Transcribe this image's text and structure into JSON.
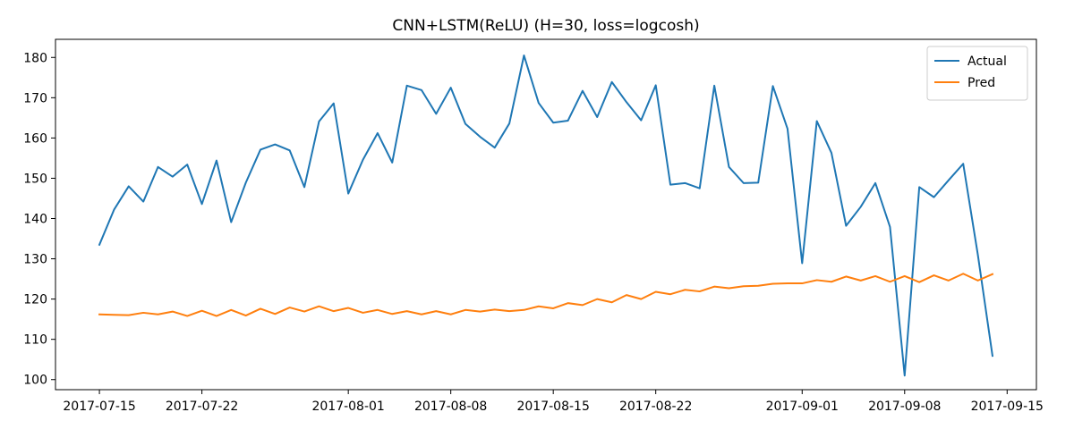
{
  "chart_data": {
    "type": "line",
    "title": "CNN+LSTM(ReLU) (H=30, loss=logcosh)",
    "xlabel": "",
    "ylabel": "",
    "x_start": "2017-07-15",
    "x_dates": [
      "2017-07-15",
      "2017-07-16",
      "2017-07-17",
      "2017-07-18",
      "2017-07-19",
      "2017-07-20",
      "2017-07-21",
      "2017-07-22",
      "2017-07-23",
      "2017-07-24",
      "2017-07-25",
      "2017-07-26",
      "2017-07-27",
      "2017-07-28",
      "2017-07-29",
      "2017-07-30",
      "2017-07-31",
      "2017-08-01",
      "2017-08-02",
      "2017-08-03",
      "2017-08-04",
      "2017-08-05",
      "2017-08-06",
      "2017-08-07",
      "2017-08-08",
      "2017-08-09",
      "2017-08-10",
      "2017-08-11",
      "2017-08-12",
      "2017-08-13",
      "2017-08-14",
      "2017-08-15",
      "2017-08-16",
      "2017-08-17",
      "2017-08-18",
      "2017-08-19",
      "2017-08-20",
      "2017-08-21",
      "2017-08-22",
      "2017-08-23",
      "2017-08-24",
      "2017-08-25",
      "2017-08-26",
      "2017-08-27",
      "2017-08-28",
      "2017-08-29",
      "2017-08-30",
      "2017-08-31",
      "2017-09-01",
      "2017-09-02",
      "2017-09-03",
      "2017-09-04",
      "2017-09-05",
      "2017-09-06",
      "2017-09-07",
      "2017-09-08",
      "2017-09-09",
      "2017-09-10",
      "2017-09-11",
      "2017-09-12",
      "2017-09-13",
      "2017-09-14"
    ],
    "xlim": [
      "2017-07-12",
      "2017-09-17"
    ],
    "ylim": [
      97.5,
      184.5
    ],
    "x_ticks": [
      "2017-07-15",
      "2017-07-22",
      "2017-08-01",
      "2017-08-08",
      "2017-08-15",
      "2017-08-22",
      "2017-09-01",
      "2017-09-08",
      "2017-09-15"
    ],
    "y_ticks": [
      100,
      110,
      120,
      130,
      140,
      150,
      160,
      170,
      180
    ],
    "grid": false,
    "legend_position": "top-right",
    "series": [
      {
        "name": "Actual",
        "color": "#1f77b4",
        "values": [
          133.5,
          142.2,
          148.0,
          144.2,
          152.8,
          150.4,
          153.4,
          143.6,
          154.4,
          139.1,
          148.9,
          157.1,
          158.4,
          156.9,
          147.8,
          164.1,
          168.6,
          146.2,
          154.6,
          161.2,
          153.9,
          173.0,
          171.9,
          166.0,
          172.5,
          163.5,
          160.3,
          157.6,
          163.6,
          180.5,
          168.7,
          163.8,
          164.3,
          171.7,
          165.2,
          173.9,
          168.9,
          164.4,
          173.1,
          148.4,
          148.8,
          147.5,
          173.0,
          152.8,
          148.8,
          148.9,
          172.9,
          162.3,
          128.9,
          164.2,
          156.3,
          138.2,
          142.9,
          148.8,
          137.9,
          101.0,
          147.8,
          145.3,
          149.5,
          153.6,
          131.0,
          105.9
        ]
      },
      {
        "name": "Pred",
        "color": "#ff7f0e",
        "values": [
          116.2,
          116.1,
          116.0,
          116.6,
          116.2,
          116.9,
          115.8,
          117.1,
          115.8,
          117.3,
          115.9,
          117.6,
          116.3,
          117.9,
          116.9,
          118.2,
          117.0,
          117.8,
          116.6,
          117.3,
          116.3,
          117.0,
          116.2,
          117.0,
          116.2,
          117.3,
          116.9,
          117.4,
          117.0,
          117.3,
          118.2,
          117.7,
          119.0,
          118.5,
          120.0,
          119.2,
          121.0,
          120.0,
          121.8,
          121.2,
          122.3,
          121.9,
          123.1,
          122.7,
          123.2,
          123.3,
          123.8,
          123.9,
          123.9,
          124.7,
          124.3,
          125.6,
          124.6,
          125.7,
          124.3,
          125.7,
          124.2,
          125.9,
          124.6,
          126.3,
          124.6,
          126.2
        ]
      }
    ]
  }
}
